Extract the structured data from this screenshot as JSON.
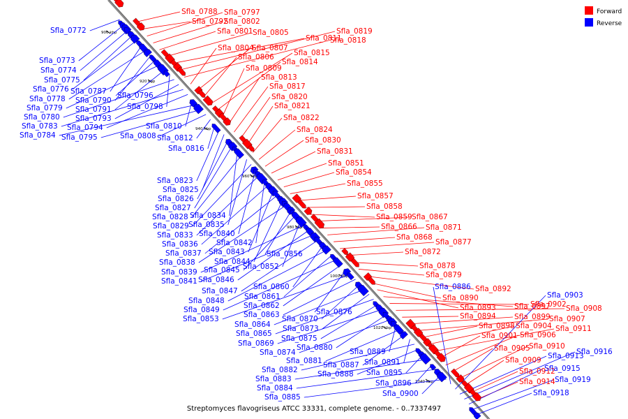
{
  "caption": "Streptomyces flavogriseus ATCC 33331, complete genome. - 0..7337497",
  "legend": [
    {
      "label": "Forward",
      "color": "#ff0000"
    },
    {
      "label": "Reverse",
      "color": "#0000ff"
    }
  ],
  "colors": {
    "forward": "#ff0000",
    "reverse": "#0000ff",
    "backbone": "#888888"
  },
  "ticks": [
    "900 kbp",
    "920 kbp",
    "940 kbp",
    "960 kbp",
    "980 kbp",
    "1000 kbp",
    "1020 kbp",
    "1040 kbp"
  ],
  "forward_labels": [
    "Sfla_0788",
    "Sfla_0792",
    "Sfla_0797",
    "Sfla_0802",
    "Sfla_0801",
    "Sfla_0805",
    "Sfla_0811",
    "Sfla_0819",
    "Sfla_0818",
    "Sfla_0804",
    "Sfla_0807",
    "Sfla_0806",
    "Sfla_0815",
    "Sfla_0814",
    "Sfla_0809",
    "Sfla_0813",
    "Sfla_0817",
    "Sfla_0820",
    "Sfla_0821",
    "Sfla_0822",
    "Sfla_0824",
    "Sfla_0830",
    "Sfla_0831",
    "Sfla_0851",
    "Sfla_0854",
    "Sfla_0855",
    "Sfla_0857",
    "Sfla_0858",
    "Sfla_0859",
    "Sfla_0867",
    "Sfla_0866",
    "Sfla_0871",
    "Sfla_0868",
    "Sfla_0877",
    "Sfla_0872",
    "Sfla_0878",
    "Sfla_0879",
    "Sfla_0892",
    "Sfla_0890",
    "Sfla_0893",
    "Sfla_0897",
    "Sfla_0902",
    "Sfla_0908",
    "Sfla_0894",
    "Sfla_0899",
    "Sfla_0907",
    "Sfla_0898",
    "Sfla_0904",
    "Sfla_0911",
    "Sfla_0901",
    "Sfla_0906",
    "Sfla_0905",
    "Sfla_0910",
    "Sfla_0909",
    "Sfla_0912",
    "Sfla_0914"
  ],
  "reverse_labels": [
    "Sfla_0772",
    "Sfla_0773",
    "Sfla_0774",
    "Sfla_0775",
    "Sfla_0776",
    "Sfla_0787",
    "Sfla_0778",
    "Sfla_0790",
    "Sfla_0796",
    "Sfla_0779",
    "Sfla_0791",
    "Sfla_0798",
    "Sfla_0780",
    "Sfla_0793",
    "Sfla_0783",
    "Sfla_0794",
    "Sfla_0810",
    "Sfla_0784",
    "Sfla_0795",
    "Sfla_0808",
    "Sfla_0812",
    "Sfla_0816",
    "Sfla_0823",
    "Sfla_0825",
    "Sfla_0826",
    "Sfla_0827",
    "Sfla_0834",
    "Sfla_0828",
    "Sfla_0835",
    "Sfla_0829",
    "Sfla_0840",
    "Sfla_0833",
    "Sfla_0842",
    "Sfla_0836",
    "Sfla_0843",
    "Sfla_0837",
    "Sfla_0844",
    "Sfla_0838",
    "Sfla_0856",
    "Sfla_0845",
    "Sfla_0852",
    "Sfla_0839",
    "Sfla_0846",
    "Sfla_0841",
    "Sfla_0847",
    "Sfla_0860",
    "Sfla_0848",
    "Sfla_0861",
    "Sfla_0849",
    "Sfla_0862",
    "Sfla_0876",
    "Sfla_0853",
    "Sfla_0863",
    "Sfla_0870",
    "Sfla_0864",
    "Sfla_0873",
    "Sfla_0865",
    "Sfla_0875",
    "Sfla_0869",
    "Sfla_0880",
    "Sfla_0874",
    "Sfla_0889",
    "Sfla_0881",
    "Sfla_0887",
    "Sfla_0891",
    "Sfla_0882",
    "Sfla_0888",
    "Sfla_0895",
    "Sfla_0883",
    "Sfla_0896",
    "Sfla_0884",
    "Sfla_0900",
    "Sfla_0885",
    "Sfla_0886",
    "Sfla_0903",
    "Sfla_0913",
    "Sfla_0916",
    "Sfla_0915",
    "Sfla_0919",
    "Sfla_0918"
  ]
}
